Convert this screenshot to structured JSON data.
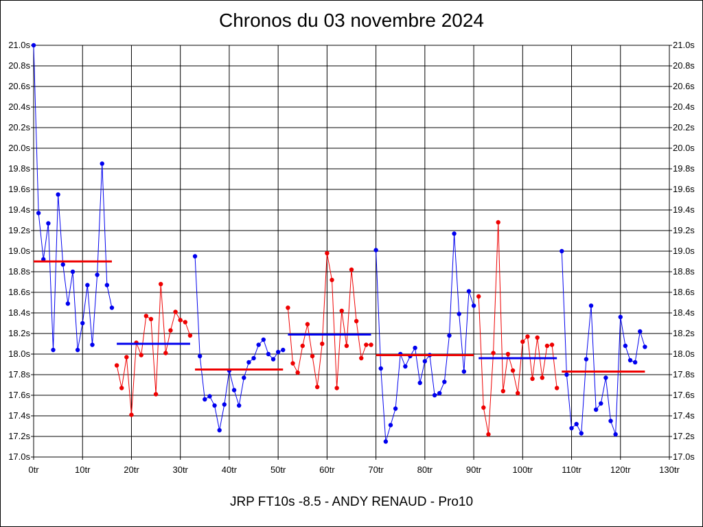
{
  "chart_data": {
    "type": "line",
    "title": "Chronos du 03 novembre 2024",
    "subtitle": "JRP FT10s -8.5 - ANDY RENAUD - Pro10",
    "xlim": [
      0,
      130
    ],
    "ylim": [
      17.0,
      21.0
    ],
    "xticks": [
      0,
      10,
      20,
      30,
      40,
      50,
      60,
      70,
      80,
      90,
      100,
      110,
      120,
      130
    ],
    "xtick_labels": [
      "0tr",
      "10tr",
      "20tr",
      "30tr",
      "40tr",
      "50tr",
      "60tr",
      "70tr",
      "80tr",
      "90tr",
      "100tr",
      "110tr",
      "120tr",
      "130tr"
    ],
    "yticks": [
      17.0,
      17.2,
      17.4,
      17.6,
      17.8,
      18.0,
      18.2,
      18.4,
      18.6,
      18.8,
      19.0,
      19.2,
      19.4,
      19.6,
      19.8,
      20.0,
      20.2,
      20.4,
      20.6,
      20.8,
      21.0
    ],
    "ytick_labels": [
      "17.0s",
      "17.2s",
      "17.4s",
      "17.6s",
      "17.8s",
      "18.0s",
      "18.2s",
      "18.4s",
      "18.6s",
      "18.8s",
      "19.0s",
      "19.2s",
      "19.4s",
      "19.6s",
      "19.8s",
      "20.0s",
      "20.2s",
      "20.4s",
      "20.6s",
      "20.8s",
      "21.0s"
    ],
    "grid": true,
    "series": [
      {
        "color": "#0000ee",
        "x_start": 0,
        "values": [
          21.0,
          19.37,
          18.92,
          19.27,
          18.04,
          19.55,
          18.87,
          18.49,
          18.8,
          18.04,
          18.3,
          18.67,
          18.09,
          18.77,
          19.85,
          18.67,
          18.45
        ],
        "average": 18.9
      },
      {
        "color": "#ee0000",
        "x_start": 17,
        "values": [
          17.89,
          17.67,
          17.97,
          17.41,
          18.11,
          17.99,
          18.37,
          18.34,
          17.61,
          18.68,
          18.01,
          18.23,
          18.41,
          18.33,
          18.31,
          18.18
        ],
        "average": 18.1
      },
      {
        "color": "#0000ee",
        "x_start": 33,
        "values": [
          18.95,
          17.98,
          17.56,
          17.59,
          17.5,
          17.26,
          17.51,
          17.84,
          17.65,
          17.5,
          17.77,
          17.92,
          17.96,
          18.09,
          18.14,
          18.0,
          17.95,
          18.02,
          18.04
        ],
        "average": 17.85
      },
      {
        "color": "#ee0000",
        "x_start": 52,
        "values": [
          18.45,
          17.91,
          17.82,
          18.08,
          18.29,
          17.98,
          17.68,
          18.1,
          18.98,
          18.72,
          17.67,
          18.42,
          18.08,
          18.82,
          18.32,
          17.96,
          18.09,
          18.09
        ],
        "average": 18.19
      },
      {
        "color": "#0000ee",
        "x_start": 70,
        "values": [
          19.01,
          17.86,
          17.15,
          17.31,
          17.47,
          18.0,
          17.88,
          17.98,
          18.06,
          17.72,
          17.93,
          17.99,
          17.6,
          17.62,
          17.73,
          18.18,
          19.17,
          18.39,
          17.83,
          18.61,
          18.47
        ],
        "average": 17.99
      },
      {
        "color": "#ee0000",
        "x_start": 91,
        "values": [
          18.56,
          17.48,
          17.22,
          18.01,
          19.28,
          17.64,
          18.0,
          17.84,
          17.62,
          18.12,
          18.17,
          17.76,
          18.16,
          17.77,
          18.08,
          18.09,
          17.67
        ],
        "average": 17.96
      },
      {
        "color": "#0000ee",
        "x_start": 108,
        "values": [
          19.0,
          17.8,
          17.28,
          17.32,
          17.23,
          17.95,
          18.47,
          17.46,
          17.52,
          17.77,
          17.35,
          17.22,
          18.36,
          18.08,
          17.94,
          17.92,
          18.22,
          18.07
        ],
        "average": 17.83
      }
    ],
    "average_lines": [
      {
        "color": "#ee0000",
        "from": 0,
        "to": 16,
        "value": 18.9
      },
      {
        "color": "#0000ee",
        "from": 17,
        "to": 32,
        "value": 18.1
      },
      {
        "color": "#ee0000",
        "from": 33,
        "to": 51,
        "value": 17.85
      },
      {
        "color": "#0000ee",
        "from": 52,
        "to": 69,
        "value": 18.19
      },
      {
        "color": "#ee0000",
        "from": 70,
        "to": 90,
        "value": 17.99
      },
      {
        "color": "#0000ee",
        "from": 91,
        "to": 107,
        "value": 17.96
      },
      {
        "color": "#ee0000",
        "from": 108,
        "to": 125,
        "value": 17.83
      }
    ]
  }
}
